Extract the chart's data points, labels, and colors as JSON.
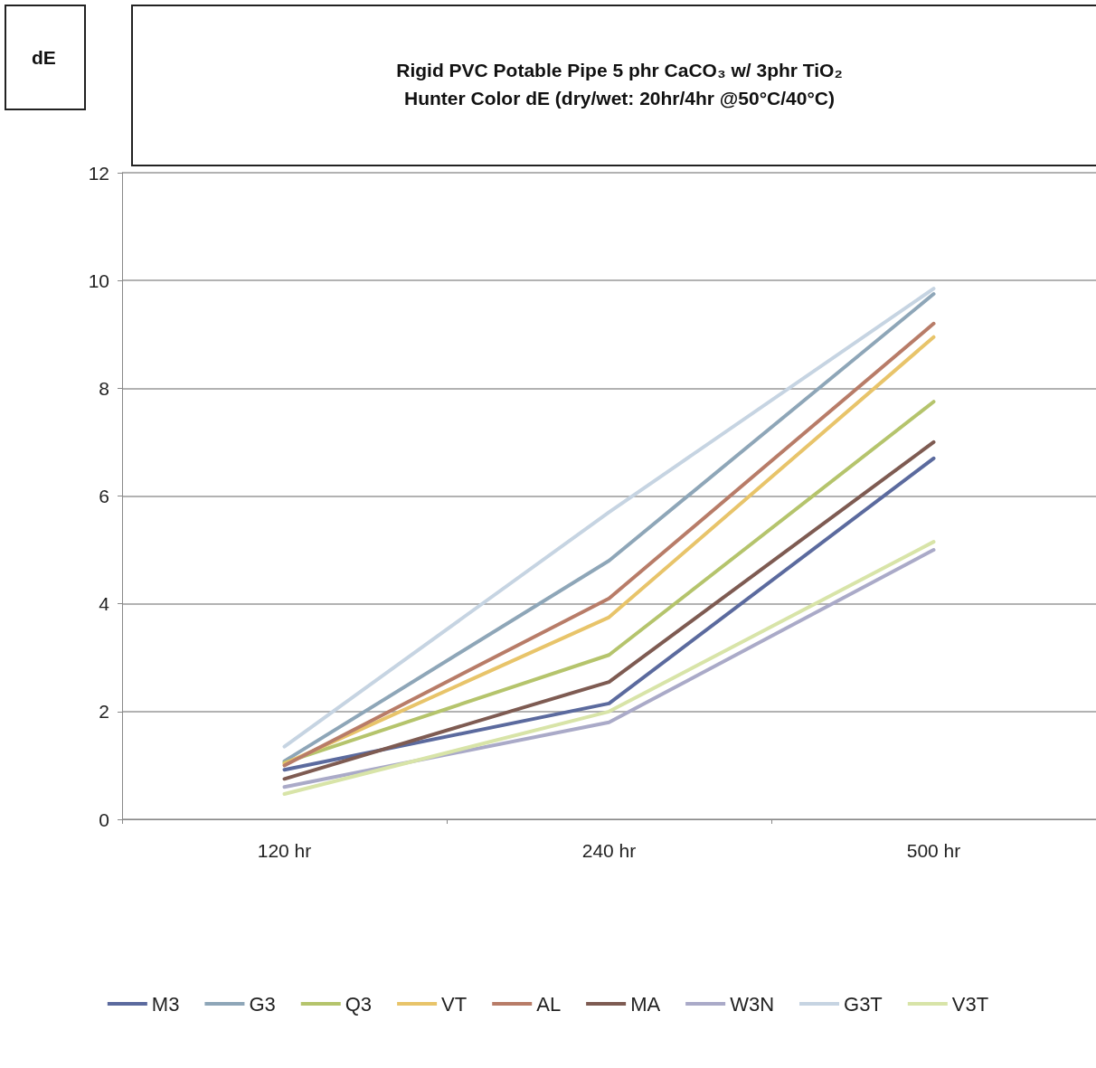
{
  "chart_data": {
    "type": "line",
    "title": "Rigid PVC Potable Pipe 5 phr CaCO₃ w/ 3phr TiO₂",
    "subtitle": "Hunter Color dE (dry/wet: 20hr/4hr @50°C/40°C)",
    "annotations": [
      "dE"
    ],
    "categories": [
      "120 hr",
      "240 hr",
      "500 hr"
    ],
    "series": [
      {
        "name": "M3",
        "color": "#5b6a9e",
        "values": [
          0.92,
          2.15,
          6.7
        ]
      },
      {
        "name": "G3",
        "color": "#8ea6b8",
        "values": [
          1.08,
          4.8,
          9.75
        ]
      },
      {
        "name": "Q3",
        "color": "#b5c46c",
        "values": [
          1.05,
          3.05,
          7.75
        ]
      },
      {
        "name": "VT",
        "color": "#e8c46a",
        "values": [
          1.03,
          3.75,
          8.95
        ]
      },
      {
        "name": "AL",
        "color": "#b87c68",
        "values": [
          1.0,
          4.1,
          9.2
        ]
      },
      {
        "name": "MA",
        "color": "#7e5b52",
        "values": [
          0.75,
          2.55,
          7.0
        ]
      },
      {
        "name": "W3N",
        "color": "#aaaac8",
        "values": [
          0.6,
          1.8,
          5.0
        ]
      },
      {
        "name": "G3T",
        "color": "#c6d4e2",
        "values": [
          1.35,
          5.7,
          9.85
        ]
      },
      {
        "name": "V3T",
        "color": "#d8e4a8",
        "values": [
          0.47,
          2.0,
          5.15
        ]
      }
    ],
    "ylim": [
      0,
      12
    ],
    "yticks": [
      0,
      2,
      4,
      6,
      8,
      10,
      12
    ],
    "grid": "y",
    "legend": "bottom",
    "marker": "none",
    "line_style": "solid"
  }
}
